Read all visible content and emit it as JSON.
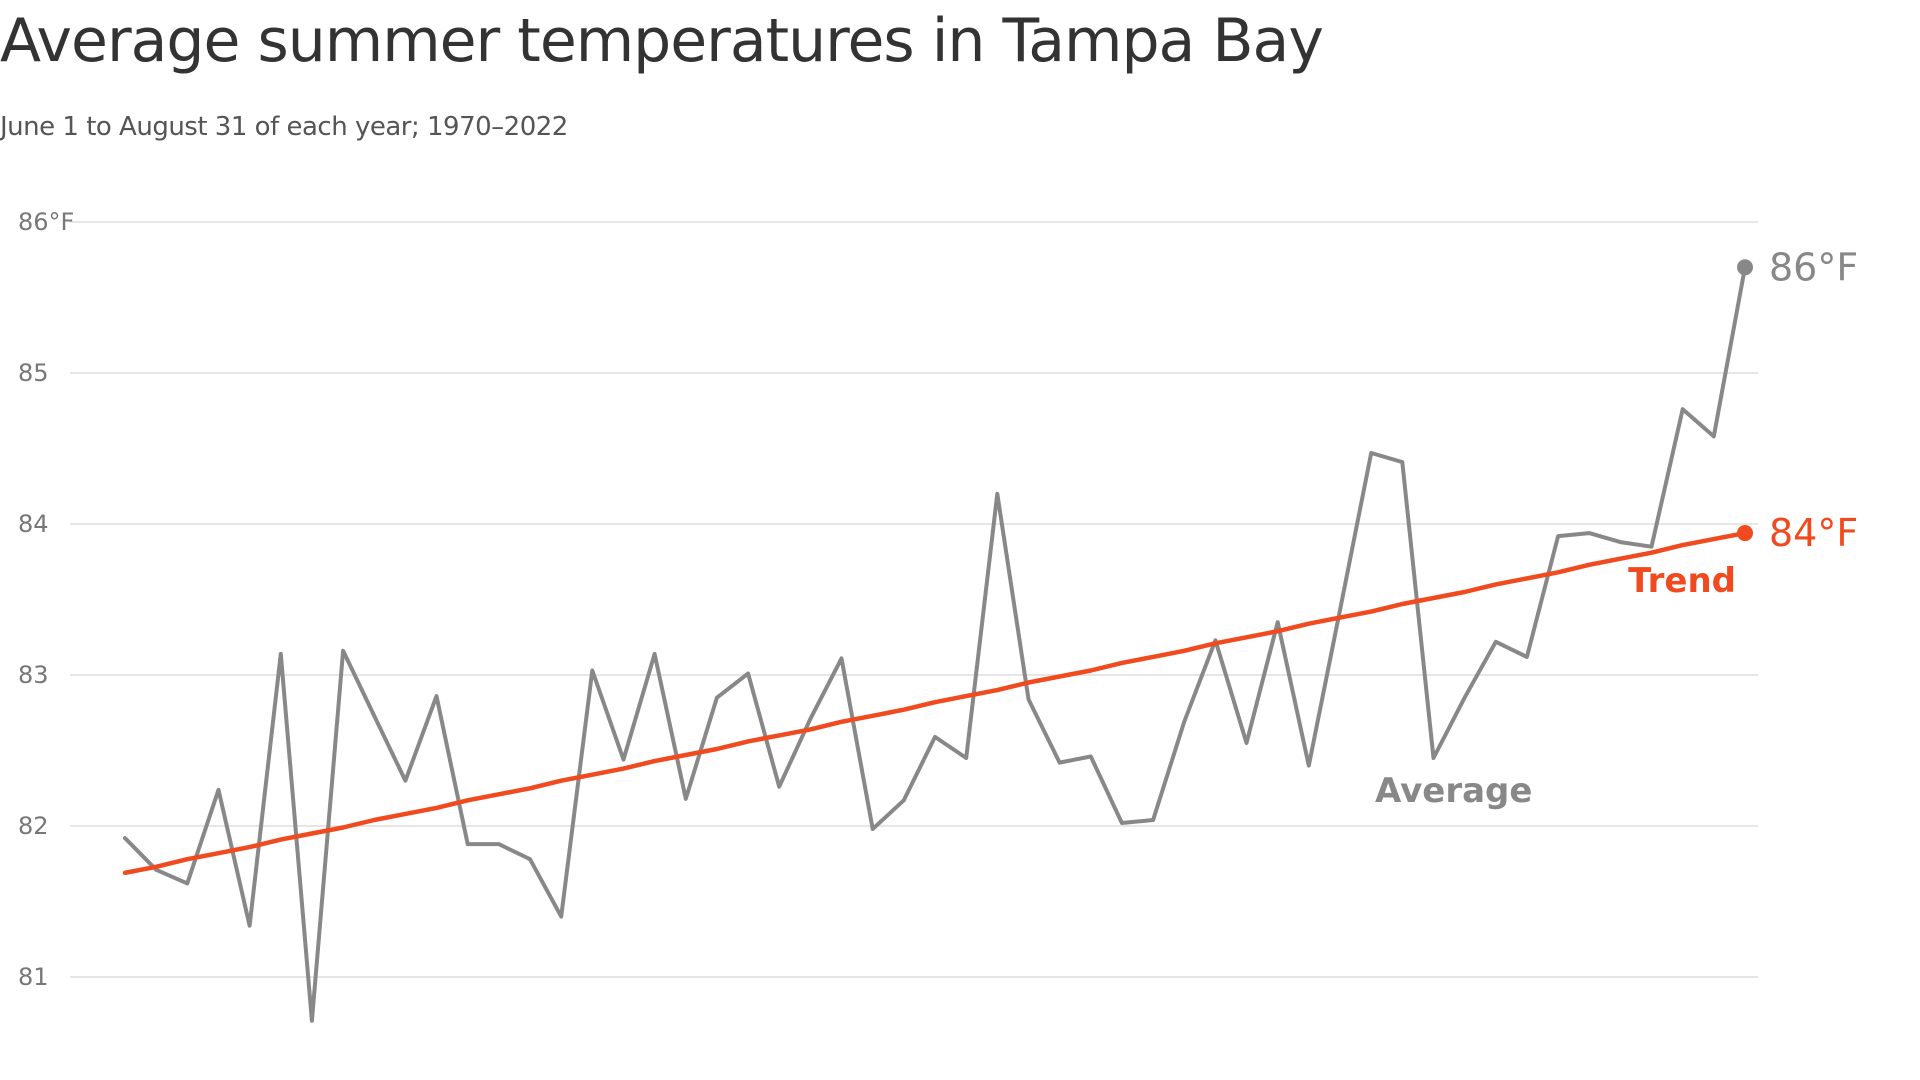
{
  "chart_data": {
    "type": "line",
    "title": "Average summer temperatures in Tampa Bay",
    "subtitle": "June 1 to August 31 of each year; 1970–2022",
    "xlim": [
      1970,
      2022
    ],
    "ylim": [
      80.6,
      86
    ],
    "y_ticks": [
      {
        "value": 81,
        "label": "81"
      },
      {
        "value": 82,
        "label": "82"
      },
      {
        "value": 83,
        "label": "83"
      },
      {
        "value": 84,
        "label": "84"
      },
      {
        "value": 85,
        "label": "85"
      },
      {
        "value": 86,
        "label": "86°F"
      }
    ],
    "grid": true,
    "x": [
      1970,
      1971,
      1972,
      1973,
      1974,
      1975,
      1976,
      1977,
      1978,
      1979,
      1980,
      1981,
      1982,
      1983,
      1984,
      1985,
      1986,
      1987,
      1988,
      1989,
      1990,
      1991,
      1992,
      1993,
      1994,
      1995,
      1996,
      1997,
      1998,
      1999,
      2000,
      2001,
      2002,
      2003,
      2004,
      2005,
      2006,
      2007,
      2008,
      2009,
      2010,
      2011,
      2012,
      2013,
      2014,
      2015,
      2016,
      2017,
      2018,
      2019,
      2020,
      2021,
      2022
    ],
    "series": [
      {
        "name": "Average",
        "color": "#888888",
        "end_label": "86°F",
        "values": [
          81.92,
          81.71,
          81.62,
          82.24,
          81.34,
          83.14,
          80.71,
          83.16,
          82.73,
          82.3,
          82.86,
          81.88,
          81.88,
          81.78,
          81.4,
          83.03,
          82.44,
          83.14,
          82.18,
          82.85,
          83.01,
          82.26,
          82.71,
          83.11,
          81.98,
          82.17,
          82.59,
          82.45,
          84.2,
          82.84,
          82.42,
          82.46,
          82.02,
          82.04,
          82.69,
          83.23,
          82.55,
          83.35,
          82.4,
          83.43,
          84.47,
          84.41,
          82.45,
          82.85,
          83.22,
          83.12,
          83.92,
          83.94,
          83.88,
          83.85,
          84.76,
          84.58,
          85.7
        ]
      },
      {
        "name": "Trend",
        "color": "#f04a1e",
        "end_label": "84°F",
        "values": [
          81.69,
          81.73,
          81.78,
          81.82,
          81.86,
          81.91,
          81.95,
          81.99,
          82.04,
          82.08,
          82.12,
          82.17,
          82.21,
          82.25,
          82.3,
          82.34,
          82.38,
          82.43,
          82.47,
          82.51,
          82.56,
          82.6,
          82.64,
          82.69,
          82.73,
          82.77,
          82.82,
          82.86,
          82.9,
          82.95,
          82.99,
          83.03,
          83.08,
          83.12,
          83.16,
          83.21,
          83.25,
          83.29,
          83.34,
          83.38,
          83.42,
          83.47,
          83.51,
          83.55,
          83.6,
          83.64,
          83.68,
          83.73,
          83.77,
          83.81,
          83.86,
          83.9,
          83.94
        ]
      }
    ]
  }
}
